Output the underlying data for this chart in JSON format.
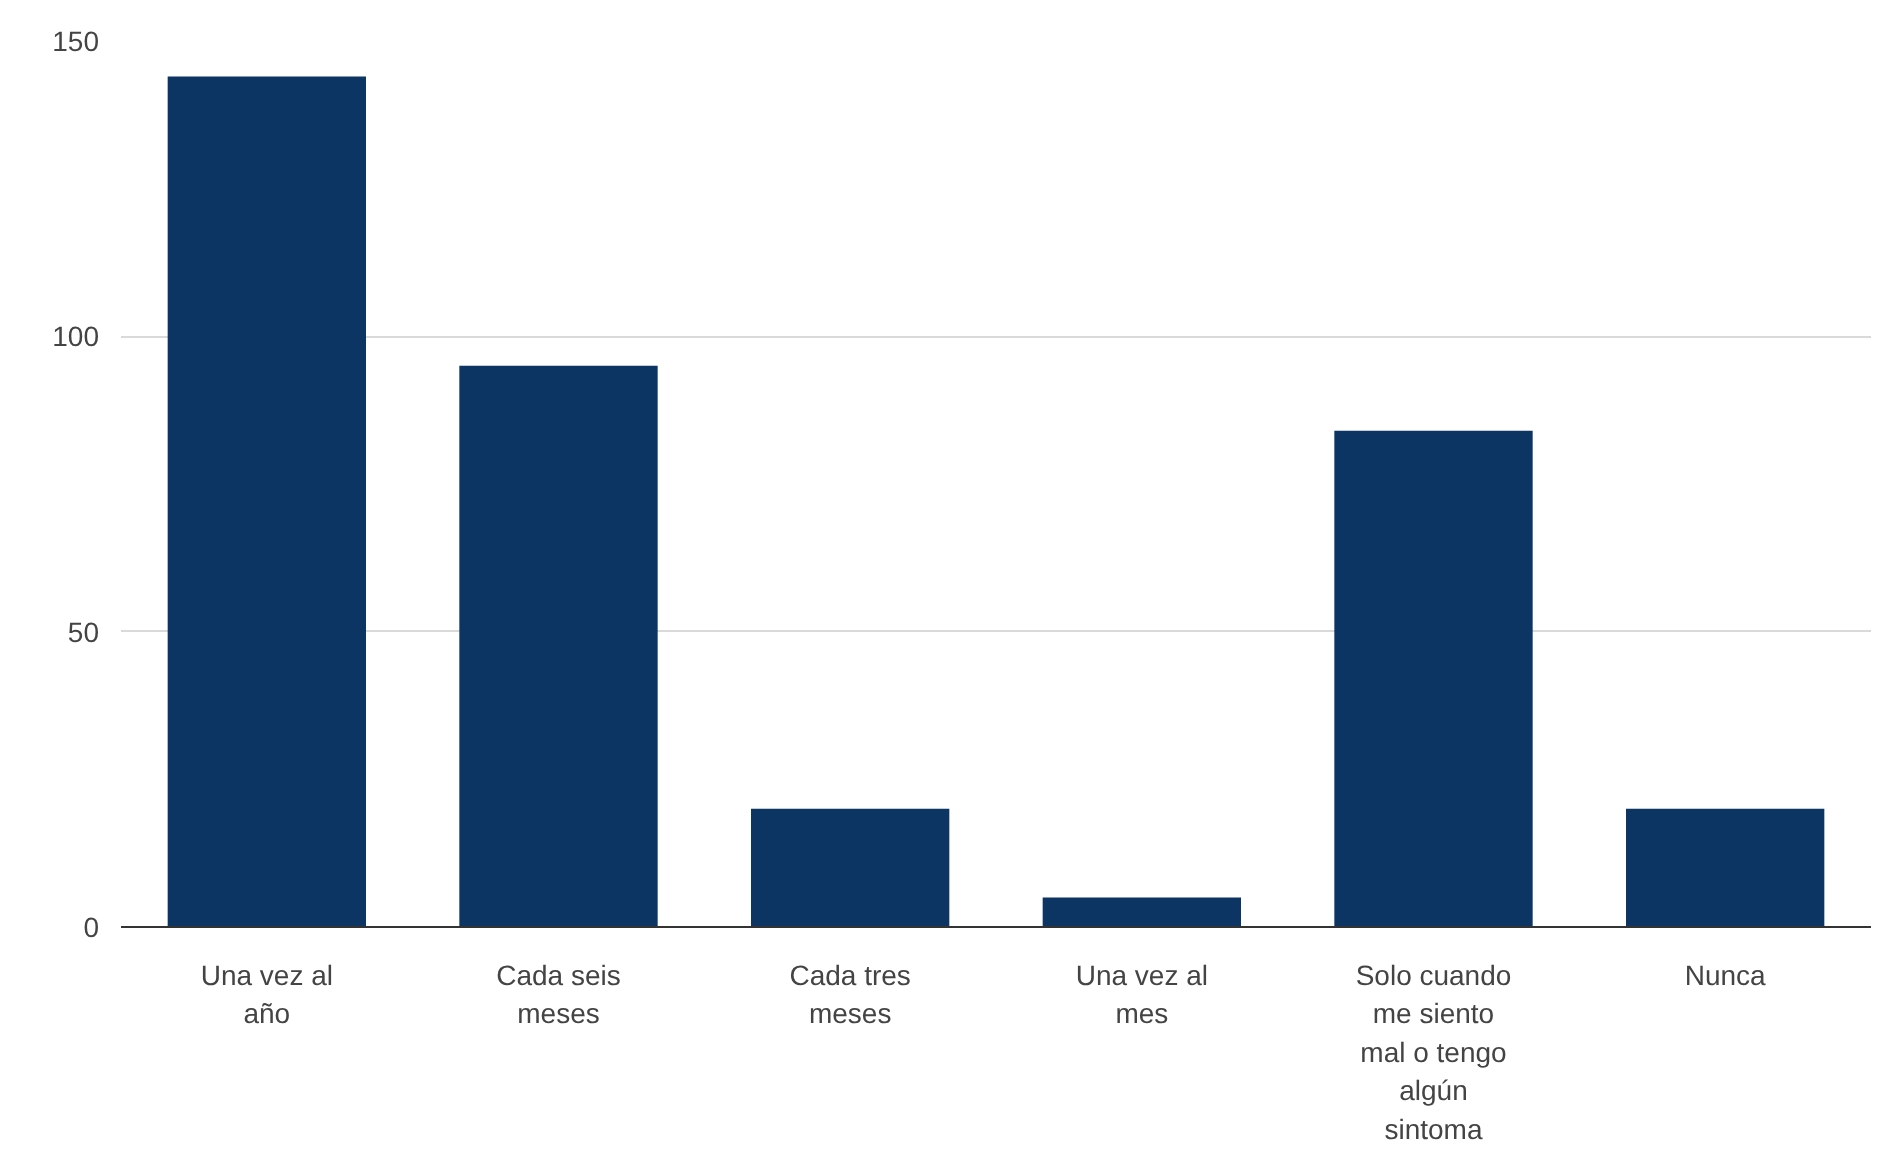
{
  "chart_data": {
    "type": "bar",
    "categories": [
      "Una vez al año",
      "Cada seis meses",
      "Cada tres meses",
      "Una vez al mes",
      "Solo cuando me siento mal o tengo algún sintoma",
      "Nunca"
    ],
    "values": [
      144,
      95,
      20,
      5,
      84,
      20
    ],
    "color": "#0d3563",
    "ylim": [
      0,
      150
    ],
    "yticks": [
      0,
      50,
      100,
      150
    ],
    "grid": "y"
  }
}
